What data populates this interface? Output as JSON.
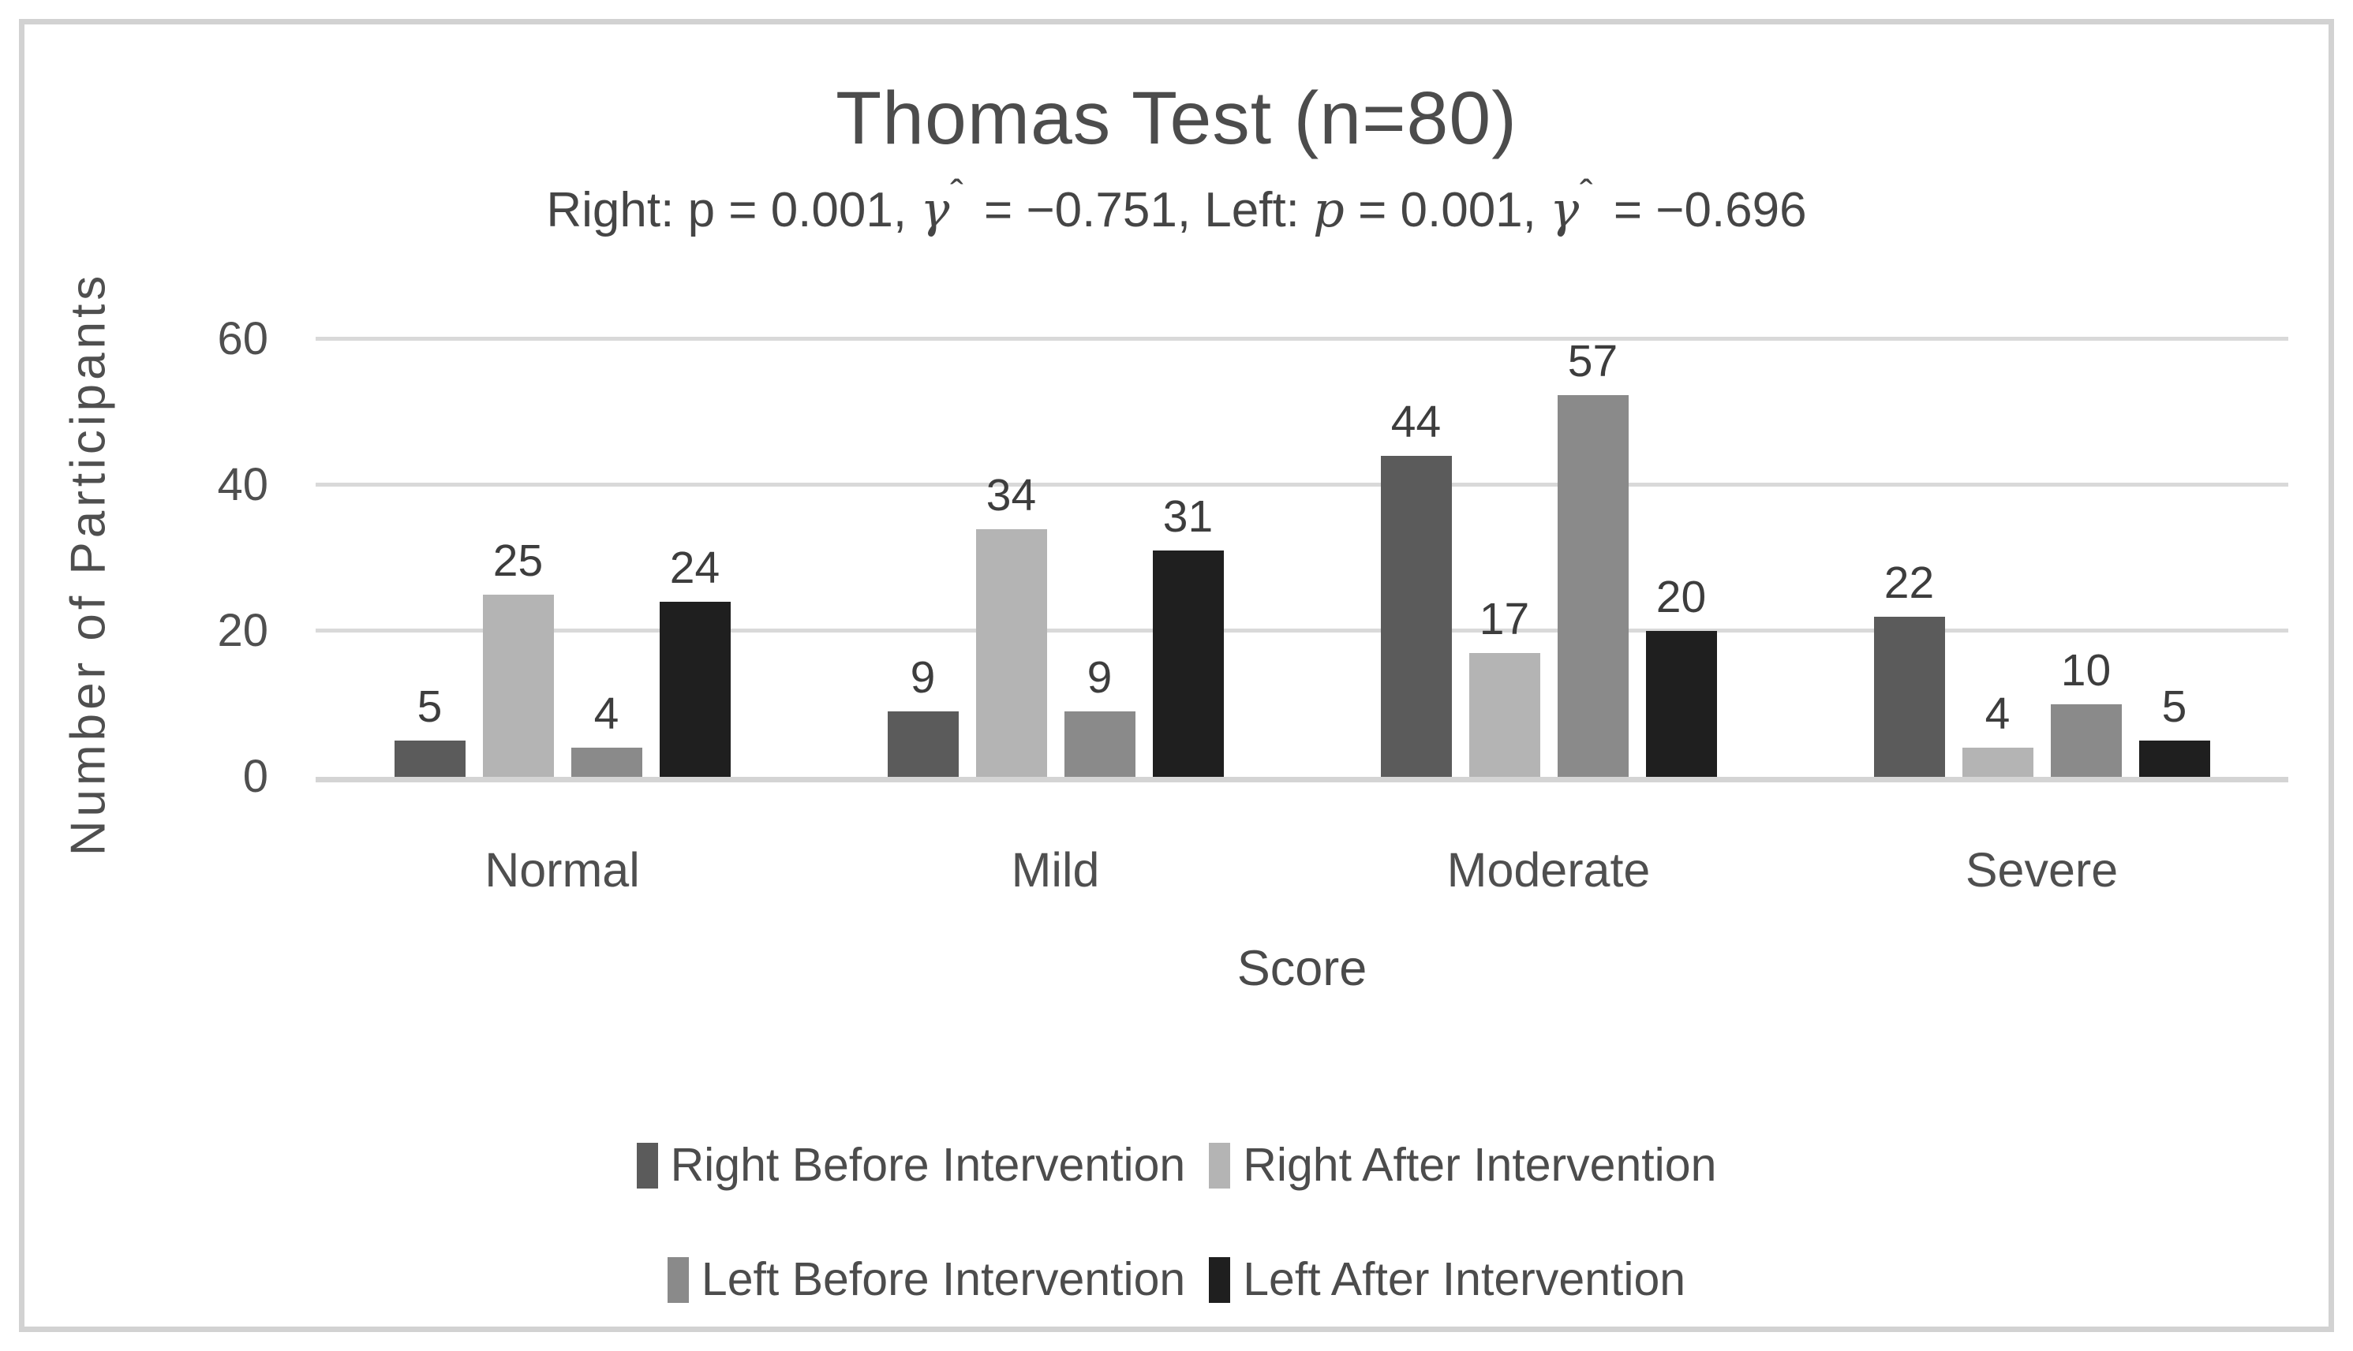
{
  "chart": {
    "title": "Thomas Test (n=80)",
    "subtitle": {
      "seg1": "Right: p = 0.001, ",
      "gamma": "γ",
      "hat": "ˆ",
      "seg2": " = −0.751, Left: ",
      "p_italic": "p",
      "seg3": " = 0.001, ",
      "seg4": " = −0.696"
    },
    "y_axis_title": "Number of Participants",
    "x_axis_title": "Score"
  },
  "chart_data": {
    "type": "bar",
    "title": "Thomas Test (n=80)",
    "subtitle": "Right: p = 0.001, γ̂ = −0.751, Left: p = 0.001, γ̂ = −0.696",
    "xlabel": "Score",
    "ylabel": "Number of Participants",
    "categories": [
      "Normal",
      "Mild",
      "Moderate",
      "Severe"
    ],
    "series": [
      {
        "name": "Right Before Intervention",
        "color": "#5b5b5b",
        "values": [
          5,
          9,
          44,
          22
        ]
      },
      {
        "name": "Right After Intervention",
        "color": "#b4b4b4",
        "values": [
          25,
          34,
          17,
          4
        ]
      },
      {
        "name": "Left Before Intervention",
        "color": "#8a8a8a",
        "values": [
          4,
          9,
          57,
          10
        ]
      },
      {
        "name": "Left After Intervention",
        "color": "#1f1f1f",
        "values": [
          24,
          31,
          20,
          5
        ]
      }
    ],
    "ylim": [
      0,
      60
    ],
    "yticks": [
      0,
      20,
      40,
      60
    ],
    "grid": true,
    "gridline_color": "#d9d9d9",
    "data_labels": true,
    "legend_position": "bottom",
    "legend_rows": [
      [
        0,
        1
      ],
      [
        2,
        3
      ]
    ]
  }
}
